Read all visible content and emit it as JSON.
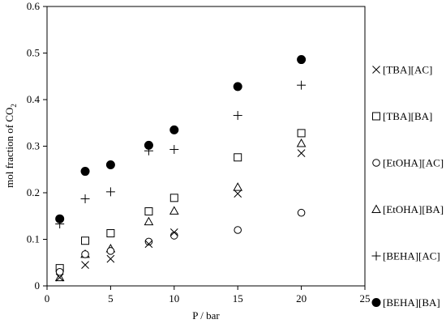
{
  "chart_data": {
    "type": "scatter",
    "title": "",
    "xlabel": "P / bar",
    "ylabel": "mol fraction of CO",
    "ylabel_subscript": "2",
    "xlim": [
      0,
      25
    ],
    "ylim": [
      0,
      0.6
    ],
    "xticks": [
      "0",
      "5",
      "10",
      "15",
      "20",
      "25"
    ],
    "yticks": [
      "0",
      "0.1",
      "0.2",
      "0.3",
      "0.4",
      "0.5",
      "0.6"
    ],
    "grid": false,
    "legend_position": "right",
    "series": [
      {
        "name": "[TBA][AC]",
        "marker": "cross",
        "x": [
          1,
          3,
          5,
          8,
          10,
          15,
          20
        ],
        "y": [
          0.018,
          0.045,
          0.058,
          0.09,
          0.115,
          0.198,
          0.285
        ]
      },
      {
        "name": "[TBA][BA]",
        "marker": "square",
        "x": [
          1,
          3,
          5,
          8,
          10,
          15,
          20
        ],
        "y": [
          0.038,
          0.097,
          0.113,
          0.16,
          0.189,
          0.276,
          0.328
        ]
      },
      {
        "name": "[EtOHA][AC]",
        "marker": "circle-open",
        "x": [
          1,
          3,
          5,
          8,
          10,
          15,
          20
        ],
        "y": [
          0.03,
          0.068,
          0.075,
          0.095,
          0.108,
          0.12,
          0.157
        ]
      },
      {
        "name": "[EtOHA][BA]",
        "marker": "triangle",
        "x": [
          1,
          3,
          5,
          8,
          10,
          15,
          20
        ],
        "y": [
          0.018,
          0.068,
          0.08,
          0.138,
          0.161,
          0.212,
          0.306
        ]
      },
      {
        "name": "[BEHA][AC]",
        "marker": "plus",
        "x": [
          1,
          3,
          5,
          8,
          10,
          15,
          20
        ],
        "y": [
          0.133,
          0.187,
          0.202,
          0.29,
          0.293,
          0.366,
          0.431
        ]
      },
      {
        "name": "[BEHA][BA]",
        "marker": "circle-filled",
        "x": [
          1,
          3,
          5,
          8,
          10,
          15,
          20
        ],
        "y": [
          0.144,
          0.246,
          0.26,
          0.302,
          0.335,
          0.428,
          0.486
        ]
      }
    ]
  }
}
